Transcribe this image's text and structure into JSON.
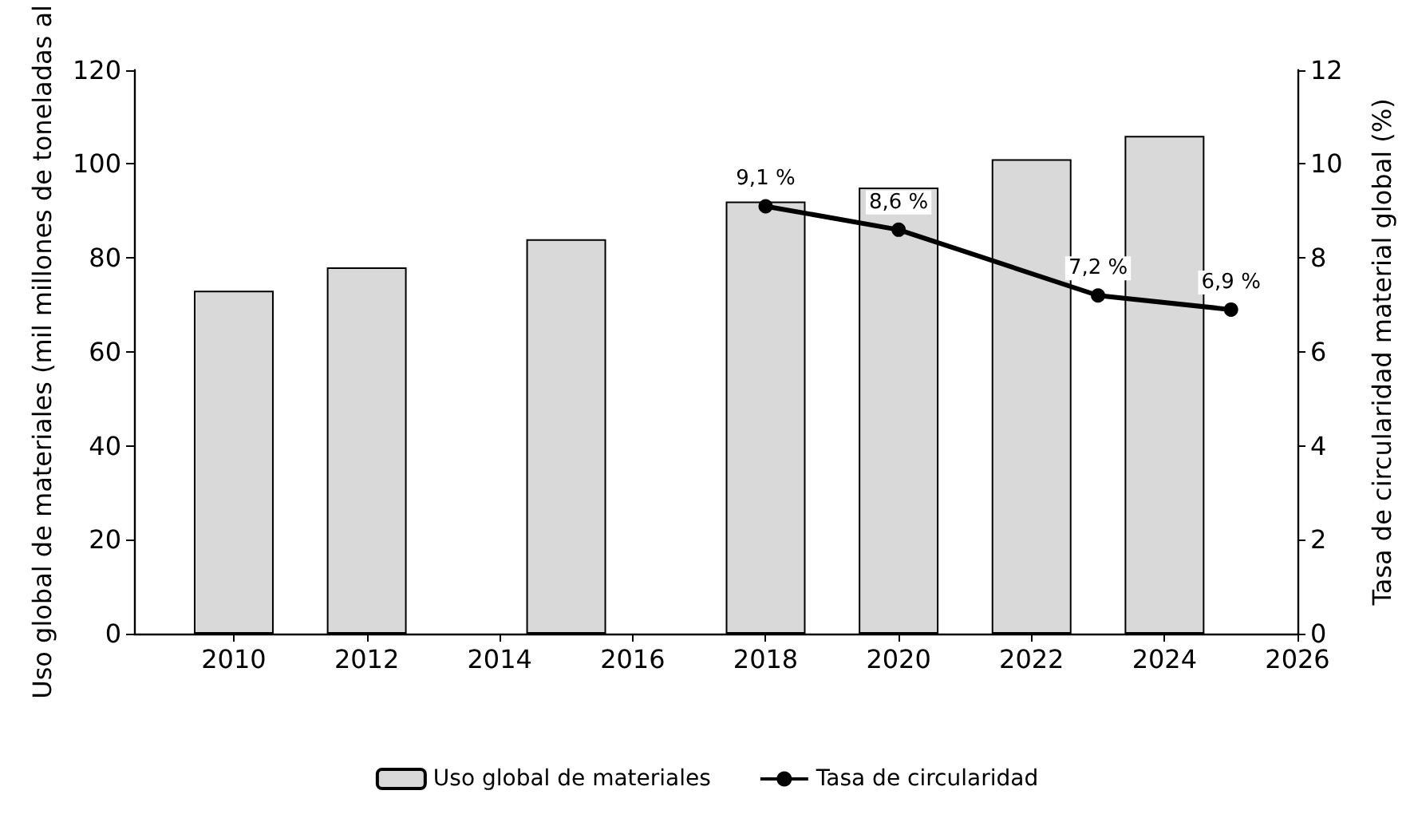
{
  "chart_data": {
    "type": "bar",
    "ylabel": "Uso global de materiales (mil millones de toneladas al",
    "y2label": "Tasa de circularidad material global (%)",
    "xlim": [
      2008.5,
      2026
    ],
    "xticks": [
      2010,
      2012,
      2014,
      2016,
      2018,
      2020,
      2022,
      2024,
      2026
    ],
    "ylim": [
      0,
      120
    ],
    "yticks": [
      0,
      20,
      40,
      60,
      80,
      100,
      120
    ],
    "y2lim": [
      0,
      12
    ],
    "y2ticks": [
      0,
      2,
      4,
      6,
      8,
      10,
      12
    ],
    "series": [
      {
        "name": "Uso global de materiales",
        "color": "#d9d9d9",
        "x": [
          2010,
          2012,
          2015,
          2018,
          2020,
          2022,
          2024
        ],
        "values": [
          73,
          78,
          84,
          92,
          95,
          101,
          106
        ]
      },
      {
        "name": "Tasa de circularidad",
        "type": "line",
        "axis": "y2",
        "color": "#000000",
        "x": [
          2018,
          2020,
          2023,
          2025
        ],
        "values": [
          9.1,
          8.6,
          7.2,
          6.9
        ],
        "value_labels": [
          "9,1 %",
          "8,6 %",
          "7,2 %",
          "6,9 %"
        ]
      }
    ],
    "marker": "circle",
    "line_style": "solid",
    "grid": false,
    "legend": "bottom"
  }
}
